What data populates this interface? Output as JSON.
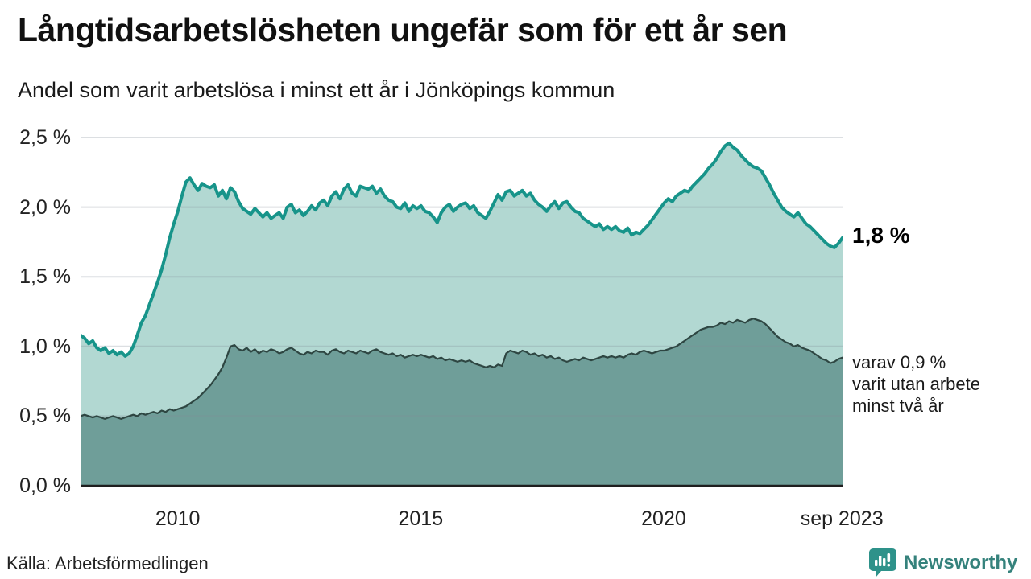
{
  "header": {
    "title": "Långtidsarbetslösheten ungefär som för ett år sen",
    "subtitle": "Andel som varit arbetslösa i minst ett år i Jönköpings kommun"
  },
  "chart_data": {
    "type": "area",
    "unit": "%",
    "frequency": "monthly",
    "x_start": "2008-01",
    "x_end": "2023-09",
    "ylim": [
      0,
      2.5
    ],
    "grid": "horizontal",
    "y_ticks": [
      {
        "value": 0.0,
        "label": "0,0 %"
      },
      {
        "value": 0.5,
        "label": "0,5 %"
      },
      {
        "value": 1.0,
        "label": "1,0 %"
      },
      {
        "value": 1.5,
        "label": "1,5 %"
      },
      {
        "value": 2.0,
        "label": "2,0 %"
      },
      {
        "value": 2.5,
        "label": "2,5 %"
      }
    ],
    "x_ticks": [
      {
        "year": 2010.0,
        "label": "2010"
      },
      {
        "year": 2015.0,
        "label": "2015"
      },
      {
        "year": 2020.0,
        "label": "2020"
      },
      {
        "year": 2023.667,
        "label": "sep 2023"
      }
    ],
    "series": [
      {
        "name": "minst ett år",
        "line_color": "#17948a",
        "fill_color": "#b2d8d2",
        "last_value": 1.8,
        "values": [
          1.08,
          1.06,
          1.02,
          1.04,
          0.99,
          0.97,
          0.99,
          0.95,
          0.97,
          0.94,
          0.96,
          0.93,
          0.95,
          1.0,
          1.08,
          1.17,
          1.22,
          1.3,
          1.38,
          1.46,
          1.55,
          1.66,
          1.78,
          1.88,
          1.97,
          2.08,
          2.18,
          2.21,
          2.16,
          2.12,
          2.17,
          2.15,
          2.14,
          2.16,
          2.08,
          2.12,
          2.06,
          2.14,
          2.11,
          2.04,
          1.99,
          1.97,
          1.95,
          1.99,
          1.96,
          1.93,
          1.96,
          1.92,
          1.94,
          1.96,
          1.92,
          2.0,
          2.02,
          1.96,
          1.98,
          1.94,
          1.97,
          2.01,
          1.98,
          2.03,
          2.05,
          2.01,
          2.08,
          2.11,
          2.06,
          2.13,
          2.16,
          2.1,
          2.08,
          2.15,
          2.14,
          2.13,
          2.15,
          2.1,
          2.13,
          2.08,
          2.05,
          2.04,
          2.0,
          1.99,
          2.03,
          1.97,
          2.01,
          1.99,
          2.01,
          1.97,
          1.96,
          1.93,
          1.89,
          1.96,
          2.0,
          2.02,
          1.97,
          2.0,
          2.02,
          2.03,
          1.99,
          2.01,
          1.96,
          1.94,
          1.92,
          1.97,
          2.03,
          2.09,
          2.05,
          2.11,
          2.12,
          2.08,
          2.1,
          2.12,
          2.08,
          2.1,
          2.05,
          2.02,
          2.0,
          1.97,
          2.01,
          2.04,
          1.99,
          2.03,
          2.04,
          2.0,
          1.97,
          1.96,
          1.92,
          1.9,
          1.88,
          1.86,
          1.88,
          1.84,
          1.86,
          1.84,
          1.86,
          1.83,
          1.82,
          1.85,
          1.8,
          1.82,
          1.81,
          1.84,
          1.87,
          1.91,
          1.95,
          1.99,
          2.03,
          2.06,
          2.04,
          2.08,
          2.1,
          2.12,
          2.11,
          2.15,
          2.18,
          2.21,
          2.24,
          2.28,
          2.31,
          2.35,
          2.4,
          2.44,
          2.46,
          2.43,
          2.41,
          2.37,
          2.34,
          2.31,
          2.29,
          2.28,
          2.26,
          2.21,
          2.16,
          2.1,
          2.05,
          2.0,
          1.97,
          1.95,
          1.93,
          1.96,
          1.92,
          1.88,
          1.86,
          1.83,
          1.8,
          1.77,
          1.74,
          1.72,
          1.71,
          1.74,
          1.78
        ]
      },
      {
        "name": "minst två år",
        "line_color": "#2e4642",
        "fill_color": "#6f9e99",
        "last_value": 0.9,
        "values": [
          0.5,
          0.51,
          0.5,
          0.49,
          0.5,
          0.49,
          0.48,
          0.49,
          0.5,
          0.49,
          0.48,
          0.49,
          0.5,
          0.51,
          0.5,
          0.52,
          0.51,
          0.52,
          0.53,
          0.52,
          0.54,
          0.53,
          0.55,
          0.54,
          0.55,
          0.56,
          0.57,
          0.59,
          0.61,
          0.63,
          0.66,
          0.69,
          0.72,
          0.76,
          0.8,
          0.85,
          0.92,
          1.0,
          1.01,
          0.98,
          0.97,
          0.99,
          0.96,
          0.98,
          0.95,
          0.97,
          0.96,
          0.98,
          0.97,
          0.95,
          0.96,
          0.98,
          0.99,
          0.97,
          0.95,
          0.94,
          0.96,
          0.95,
          0.97,
          0.96,
          0.96,
          0.94,
          0.97,
          0.98,
          0.96,
          0.95,
          0.97,
          0.96,
          0.95,
          0.97,
          0.96,
          0.95,
          0.97,
          0.98,
          0.96,
          0.95,
          0.94,
          0.95,
          0.93,
          0.94,
          0.92,
          0.93,
          0.94,
          0.93,
          0.94,
          0.93,
          0.92,
          0.93,
          0.91,
          0.92,
          0.9,
          0.91,
          0.9,
          0.89,
          0.9,
          0.89,
          0.9,
          0.88,
          0.87,
          0.86,
          0.85,
          0.86,
          0.85,
          0.87,
          0.86,
          0.95,
          0.97,
          0.96,
          0.95,
          0.97,
          0.96,
          0.94,
          0.95,
          0.93,
          0.94,
          0.92,
          0.93,
          0.91,
          0.92,
          0.9,
          0.89,
          0.9,
          0.91,
          0.9,
          0.92,
          0.91,
          0.9,
          0.91,
          0.92,
          0.93,
          0.92,
          0.93,
          0.92,
          0.93,
          0.92,
          0.94,
          0.95,
          0.94,
          0.96,
          0.97,
          0.96,
          0.95,
          0.96,
          0.97,
          0.97,
          0.98,
          0.99,
          1.0,
          1.02,
          1.04,
          1.06,
          1.08,
          1.1,
          1.12,
          1.13,
          1.14,
          1.14,
          1.15,
          1.17,
          1.16,
          1.18,
          1.17,
          1.19,
          1.18,
          1.17,
          1.19,
          1.2,
          1.19,
          1.18,
          1.16,
          1.13,
          1.1,
          1.07,
          1.05,
          1.03,
          1.02,
          1.0,
          1.01,
          0.99,
          0.98,
          0.97,
          0.95,
          0.93,
          0.91,
          0.9,
          0.88,
          0.89,
          0.91,
          0.92
        ]
      }
    ],
    "annotations": {
      "latest_value_label": "1,8 %",
      "secondary_label_lines": [
        "varav 0,9 %",
        "varit utan arbete",
        "minst två år"
      ]
    }
  },
  "footer": {
    "source": "Källa: Arbetsförmedlingen",
    "brand": "Newsworthy"
  },
  "colors": {
    "accent_teal": "#17948a",
    "light_fill": "#b2d8d2",
    "dark_fill": "#6f9e99",
    "dark_line": "#2e4642",
    "brand_teal": "#2e928a",
    "axis_text": "#222222"
  }
}
